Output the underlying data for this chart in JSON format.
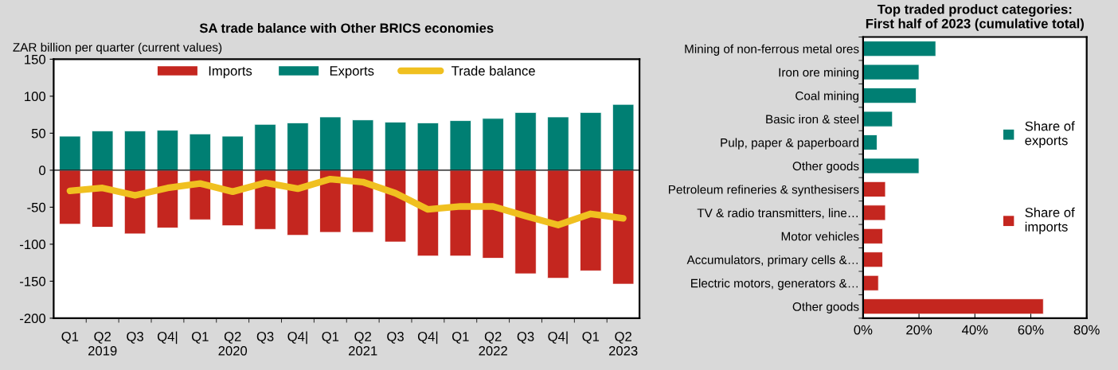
{
  "chart_data": [
    {
      "type": "bar",
      "title": "SA trade balance with Other BRICS economies",
      "ylabel": "ZAR billion per quarter (current values)",
      "legend": "top",
      "stacked": true,
      "categories": [
        "Q1",
        "Q2\n2019",
        "Q3",
        "Q4|",
        "Q1",
        "Q2\n2020",
        "Q3",
        "Q4|",
        "Q1",
        "Q2\n2021",
        "Q3",
        "Q4|",
        "Q1",
        "Q2\n2022",
        "Q3",
        "Q4|",
        "Q1",
        "Q2\n2023"
      ],
      "ylim": [
        -200,
        150
      ],
      "yticks": [
        -200,
        -150,
        -100,
        -50,
        0,
        50,
        100,
        150
      ],
      "series": [
        {
          "name": "Imports",
          "color": "#c4261f",
          "values": [
            -73,
            -77,
            -86,
            -78,
            -67,
            -75,
            -80,
            -88,
            -84,
            -84,
            -97,
            -116,
            -116,
            -119,
            -140,
            -146,
            -136,
            -154
          ]
        },
        {
          "name": "Exports",
          "color": "#007f73",
          "values": [
            46,
            53,
            53,
            54,
            49,
            46,
            62,
            64,
            72,
            68,
            65,
            64,
            67,
            70,
            78,
            72,
            78,
            89
          ]
        },
        {
          "name": "Trade balance",
          "type": "line",
          "color": "#f0c020",
          "values": [
            -28,
            -24,
            -34,
            -24,
            -18,
            -29,
            -17,
            -25,
            -12,
            -16,
            -31,
            -53,
            -49,
            -49,
            -62,
            -74,
            -59,
            -65
          ]
        }
      ]
    },
    {
      "type": "bar",
      "orientation": "horizontal",
      "title": "Top traded product categories:\nFirst half of 2023 (cumulative total)",
      "legend": "right",
      "categories": [
        "Mining of non-ferrous metal ores",
        "Iron ore mining",
        "Coal mining",
        "Basic iron & steel",
        "Pulp, paper & paperboard",
        "Other goods",
        "Petroleum refineries & synthesisers",
        "TV & radio transmitters, line…",
        "Motor vehicles",
        "Accumulators, primary cells &…",
        "Electric motors, generators &…",
        "Other goods"
      ],
      "xlim": [
        0,
        80
      ],
      "xticks": [
        {
          "value": 0,
          "label": "0%"
        },
        {
          "value": 20,
          "label": "20%"
        },
        {
          "value": 40,
          "label": "40%"
        },
        {
          "value": 60,
          "label": "60%"
        },
        {
          "value": 80,
          "label": "80%"
        }
      ],
      "series": [
        {
          "name": "Share of\nexports",
          "color": "#007f73",
          "values": [
            26,
            20,
            19,
            10.5,
            5,
            20,
            null,
            null,
            null,
            null,
            null,
            null
          ]
        },
        {
          "name": "Share of\nimports",
          "color": "#c4261f",
          "values": [
            null,
            null,
            null,
            null,
            null,
            null,
            8,
            8,
            7,
            7,
            5.5,
            64.5
          ]
        }
      ]
    }
  ]
}
